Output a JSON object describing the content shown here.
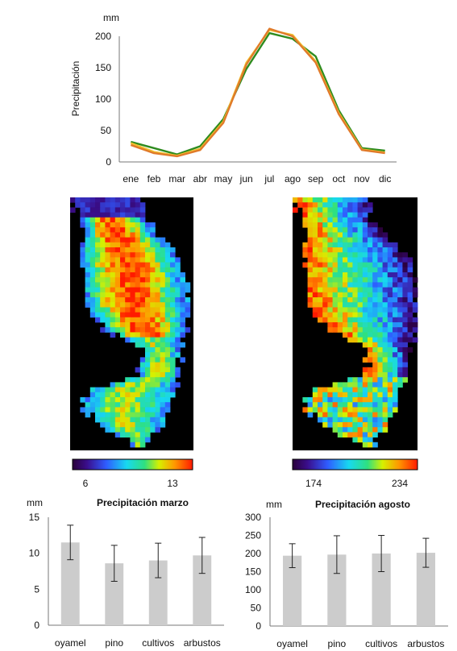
{
  "chart_data": [
    {
      "type": "line",
      "unit": "mm",
      "ylabel": "Precipitación",
      "categories": [
        "ene",
        "feb",
        "mar",
        "abr",
        "may",
        "jun",
        "jul",
        "ago",
        "sep",
        "oct",
        "nov",
        "dic"
      ],
      "ylim": [
        0,
        200
      ],
      "yticks": [
        0,
        50,
        100,
        150,
        200
      ],
      "series": [
        {
          "color": "#2e8b1e",
          "values": [
            32,
            22,
            12,
            25,
            68,
            148,
            205,
            196,
            168,
            82,
            22,
            18
          ]
        },
        {
          "color": "#f2c12e",
          "values": [
            30,
            16,
            10,
            21,
            64,
            158,
            210,
            202,
            160,
            78,
            20,
            15
          ]
        },
        {
          "color": "#e07a2a",
          "values": [
            27,
            14,
            9,
            19,
            62,
            155,
            212,
            200,
            158,
            76,
            19,
            14
          ]
        }
      ]
    },
    {
      "type": "bar",
      "unit": "mm",
      "title": "Precipitación marzo",
      "categories": [
        "oyamel",
        "pino",
        "cultivos",
        "arbustos"
      ],
      "values": [
        11.5,
        8.6,
        9.0,
        9.7
      ],
      "errors": [
        2.4,
        2.5,
        2.4,
        2.5
      ],
      "ylim": [
        0,
        15
      ],
      "yticks": [
        0,
        5,
        10,
        15
      ]
    },
    {
      "type": "bar",
      "unit": "mm",
      "title": "Precipitación agosto",
      "categories": [
        "oyamel",
        "pino",
        "cultivos",
        "arbustos"
      ],
      "values": [
        194,
        197,
        200,
        202
      ],
      "errors": [
        33,
        52,
        50,
        40
      ],
      "ylim": [
        0,
        300
      ],
      "yticks": [
        0,
        50,
        100,
        150,
        200,
        250,
        300
      ]
    }
  ],
  "maps": [
    {
      "colorbar_min": "6",
      "colorbar_max": "13"
    },
    {
      "colorbar_min": "174",
      "colorbar_max": "234"
    }
  ],
  "colors": {
    "bar_fill": "#cccccc",
    "map_background": "#000000"
  }
}
